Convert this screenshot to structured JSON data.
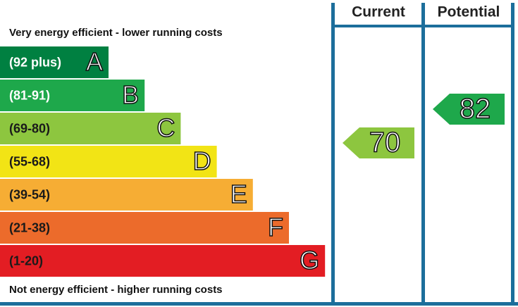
{
  "columns": [
    "Current",
    "Potential"
  ],
  "top_note": "Very energy efficient - lower running costs",
  "bottom_note": "Not energy efficient - higher running costs",
  "bands": [
    {
      "range": "(92 plus)",
      "letter": "A",
      "color": "#008041",
      "text_color": "#ffffff"
    },
    {
      "range": "(81-91)",
      "letter": "B",
      "color": "#1ea84b",
      "text_color": "#ffffff"
    },
    {
      "range": "(69-80)",
      "letter": "C",
      "color": "#8dc63f",
      "text_color": "#1a1a1a"
    },
    {
      "range": "(55-68)",
      "letter": "D",
      "color": "#f2e415",
      "text_color": "#1a1a1a"
    },
    {
      "range": "(39-54)",
      "letter": "E",
      "color": "#f6ad34",
      "text_color": "#1a1a1a"
    },
    {
      "range": "(21-38)",
      "letter": "F",
      "color": "#ec6b2b",
      "text_color": "#1a1a1a"
    },
    {
      "range": "(1-20)",
      "letter": "G",
      "color": "#e31d23",
      "text_color": "#1a1a1a"
    }
  ],
  "current": {
    "value": 70,
    "color": "#8dc63f"
  },
  "potential": {
    "value": 82,
    "color": "#1ea84b"
  }
}
